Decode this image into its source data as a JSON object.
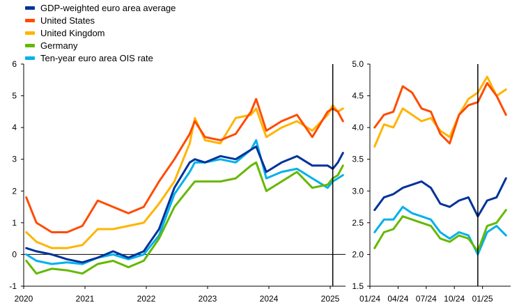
{
  "legend": [
    {
      "name": "GDP-weighted euro area average",
      "color": "#003299"
    },
    {
      "name": "United States",
      "color": "#FF4B00"
    },
    {
      "name": "United Kingdom",
      "color": "#FFB400"
    },
    {
      "name": "Germany",
      "color": "#65B800"
    },
    {
      "name": "Ten-year euro area OIS rate",
      "color": "#00B1EA"
    }
  ],
  "chart_data": [
    {
      "type": "line",
      "title": "",
      "xlabel": "",
      "ylabel": "",
      "x_tick_labels": [
        "2020",
        "2021",
        "2022",
        "2023",
        "2024",
        "2025"
      ],
      "y_tick_labels": [
        "-1",
        "0",
        "1",
        "2",
        "3",
        "4",
        "5",
        "6"
      ],
      "ylim": [
        -1,
        6
      ],
      "x_range": [
        "2020-01",
        "2025-03"
      ],
      "marker_line": "2025-01",
      "series": [
        {
          "name": "GDP-weighted euro area average",
          "color": "#003299",
          "x": [
            "2020-01",
            "2020-03",
            "2020-06",
            "2020-09",
            "2020-12",
            "2021-03",
            "2021-06",
            "2021-09",
            "2021-12",
            "2022-03",
            "2022-06",
            "2022-09",
            "2022-10",
            "2022-12",
            "2023-03",
            "2023-06",
            "2023-09",
            "2023-10",
            "2023-12",
            "2024-03",
            "2024-06",
            "2024-09",
            "2024-12",
            "2025-01",
            "2025-02",
            "2025-03"
          ],
          "values": [
            0.2,
            0.1,
            0.0,
            -0.15,
            -0.25,
            -0.1,
            0.1,
            -0.1,
            0.1,
            0.8,
            2.1,
            2.9,
            3.0,
            2.9,
            3.1,
            3.0,
            3.3,
            3.4,
            2.6,
            2.9,
            3.1,
            2.8,
            2.8,
            2.7,
            2.9,
            3.2
          ]
        },
        {
          "name": "United States",
          "color": "#FF4B00",
          "x": [
            "2020-01",
            "2020-03",
            "2020-06",
            "2020-09",
            "2020-12",
            "2021-03",
            "2021-06",
            "2021-09",
            "2021-12",
            "2022-03",
            "2022-06",
            "2022-09",
            "2022-10",
            "2022-12",
            "2023-03",
            "2023-06",
            "2023-09",
            "2023-10",
            "2023-12",
            "2024-03",
            "2024-06",
            "2024-09",
            "2024-12",
            "2025-01",
            "2025-02",
            "2025-03"
          ],
          "values": [
            1.8,
            1.0,
            0.7,
            0.7,
            0.9,
            1.7,
            1.5,
            1.3,
            1.5,
            2.3,
            3.0,
            3.8,
            4.2,
            3.7,
            3.6,
            3.8,
            4.5,
            4.9,
            3.9,
            4.2,
            4.4,
            3.7,
            4.5,
            4.6,
            4.5,
            4.2
          ]
        },
        {
          "name": "United Kingdom",
          "color": "#FFB400",
          "x": [
            "2020-01",
            "2020-03",
            "2020-06",
            "2020-09",
            "2020-12",
            "2021-03",
            "2021-06",
            "2021-09",
            "2021-12",
            "2022-03",
            "2022-06",
            "2022-09",
            "2022-10",
            "2022-12",
            "2023-03",
            "2023-06",
            "2023-09",
            "2023-10",
            "2023-12",
            "2024-03",
            "2024-06",
            "2024-09",
            "2024-12",
            "2025-01",
            "2025-02",
            "2025-03"
          ],
          "values": [
            0.7,
            0.4,
            0.2,
            0.2,
            0.3,
            0.8,
            0.8,
            0.9,
            1.0,
            1.6,
            2.3,
            3.5,
            4.3,
            3.6,
            3.5,
            4.3,
            4.4,
            4.6,
            3.7,
            4.0,
            4.2,
            3.9,
            4.4,
            4.7,
            4.5,
            4.6
          ]
        },
        {
          "name": "Germany",
          "color": "#65B800",
          "x": [
            "2020-01",
            "2020-03",
            "2020-06",
            "2020-09",
            "2020-12",
            "2021-03",
            "2021-06",
            "2021-09",
            "2021-12",
            "2022-03",
            "2022-06",
            "2022-09",
            "2022-10",
            "2022-12",
            "2023-03",
            "2023-06",
            "2023-09",
            "2023-10",
            "2023-12",
            "2024-03",
            "2024-06",
            "2024-09",
            "2024-12",
            "2025-01",
            "2025-02",
            "2025-03"
          ],
          "values": [
            -0.2,
            -0.6,
            -0.45,
            -0.5,
            -0.6,
            -0.3,
            -0.2,
            -0.4,
            -0.2,
            0.5,
            1.5,
            2.1,
            2.3,
            2.3,
            2.3,
            2.4,
            2.8,
            2.9,
            2.0,
            2.3,
            2.6,
            2.1,
            2.2,
            2.4,
            2.5,
            2.8
          ]
        },
        {
          "name": "Ten-year euro area OIS rate",
          "color": "#00B1EA",
          "x": [
            "2020-01",
            "2020-03",
            "2020-06",
            "2020-09",
            "2020-12",
            "2021-03",
            "2021-06",
            "2021-09",
            "2021-12",
            "2022-03",
            "2022-06",
            "2022-09",
            "2022-10",
            "2022-12",
            "2023-03",
            "2023-06",
            "2023-09",
            "2023-10",
            "2023-12",
            "2024-03",
            "2024-06",
            "2024-09",
            "2024-12",
            "2025-01",
            "2025-02",
            "2025-03"
          ],
          "values": [
            0.0,
            -0.2,
            -0.3,
            -0.25,
            -0.3,
            -0.1,
            0.0,
            -0.15,
            0.0,
            0.6,
            1.9,
            2.6,
            2.9,
            2.9,
            3.0,
            2.9,
            3.3,
            3.6,
            2.4,
            2.6,
            2.7,
            2.4,
            2.1,
            2.3,
            2.4,
            2.5
          ]
        }
      ]
    },
    {
      "type": "line",
      "title": "",
      "xlabel": "",
      "ylabel": "",
      "x_tick_labels": [
        "01/24",
        "04/24",
        "07/24",
        "10/24",
        "01/25"
      ],
      "y_tick_labels": [
        "1.5",
        "2.0",
        "2.5",
        "3.0",
        "3.5",
        "4.0",
        "4.5",
        "5.0"
      ],
      "ylim": [
        1.5,
        5.0
      ],
      "x_range": [
        "2024-01",
        "2025-03"
      ],
      "marker_line": "2024-12",
      "series": [
        {
          "name": "GDP-weighted euro area average",
          "color": "#003299",
          "x": [
            "2024-01",
            "2024-02",
            "2024-03",
            "2024-04",
            "2024-05",
            "2024-06",
            "2024-07",
            "2024-08",
            "2024-09",
            "2024-10",
            "2024-11",
            "2024-12",
            "2025-01",
            "2025-02",
            "2025-03"
          ],
          "values": [
            2.7,
            2.9,
            2.95,
            3.05,
            3.1,
            3.15,
            3.05,
            2.8,
            2.75,
            2.85,
            2.9,
            2.6,
            2.85,
            2.9,
            3.2
          ]
        },
        {
          "name": "United States",
          "color": "#FF4B00",
          "x": [
            "2024-01",
            "2024-02",
            "2024-03",
            "2024-04",
            "2024-05",
            "2024-06",
            "2024-07",
            "2024-08",
            "2024-09",
            "2024-10",
            "2024-11",
            "2024-12",
            "2025-01",
            "2025-02",
            "2025-03"
          ],
          "values": [
            4.0,
            4.2,
            4.25,
            4.65,
            4.55,
            4.3,
            4.25,
            3.9,
            3.75,
            4.2,
            4.35,
            4.4,
            4.7,
            4.5,
            4.2
          ]
        },
        {
          "name": "United Kingdom",
          "color": "#FFB400",
          "x": [
            "2024-01",
            "2024-02",
            "2024-03",
            "2024-04",
            "2024-05",
            "2024-06",
            "2024-07",
            "2024-08",
            "2024-09",
            "2024-10",
            "2024-11",
            "2024-12",
            "2025-01",
            "2025-02",
            "2025-03"
          ],
          "values": [
            3.7,
            4.05,
            4.0,
            4.3,
            4.2,
            4.1,
            4.15,
            3.95,
            3.85,
            4.2,
            4.45,
            4.55,
            4.8,
            4.5,
            4.6
          ]
        },
        {
          "name": "Germany",
          "color": "#65B800",
          "x": [
            "2024-01",
            "2024-02",
            "2024-03",
            "2024-04",
            "2024-05",
            "2024-06",
            "2024-07",
            "2024-08",
            "2024-09",
            "2024-10",
            "2024-11",
            "2024-12",
            "2025-01",
            "2025-02",
            "2025-03"
          ],
          "values": [
            2.1,
            2.35,
            2.4,
            2.6,
            2.55,
            2.5,
            2.45,
            2.25,
            2.2,
            2.3,
            2.25,
            2.05,
            2.45,
            2.5,
            2.7
          ]
        },
        {
          "name": "Ten-year euro area OIS rate",
          "color": "#00B1EA",
          "x": [
            "2024-01",
            "2024-02",
            "2024-03",
            "2024-04",
            "2024-05",
            "2024-06",
            "2024-07",
            "2024-08",
            "2024-09",
            "2024-10",
            "2024-11",
            "2024-12",
            "2025-01",
            "2025-02",
            "2025-03"
          ],
          "values": [
            2.35,
            2.55,
            2.55,
            2.75,
            2.65,
            2.6,
            2.55,
            2.35,
            2.25,
            2.35,
            2.3,
            2.0,
            2.35,
            2.45,
            2.3
          ]
        }
      ]
    }
  ]
}
